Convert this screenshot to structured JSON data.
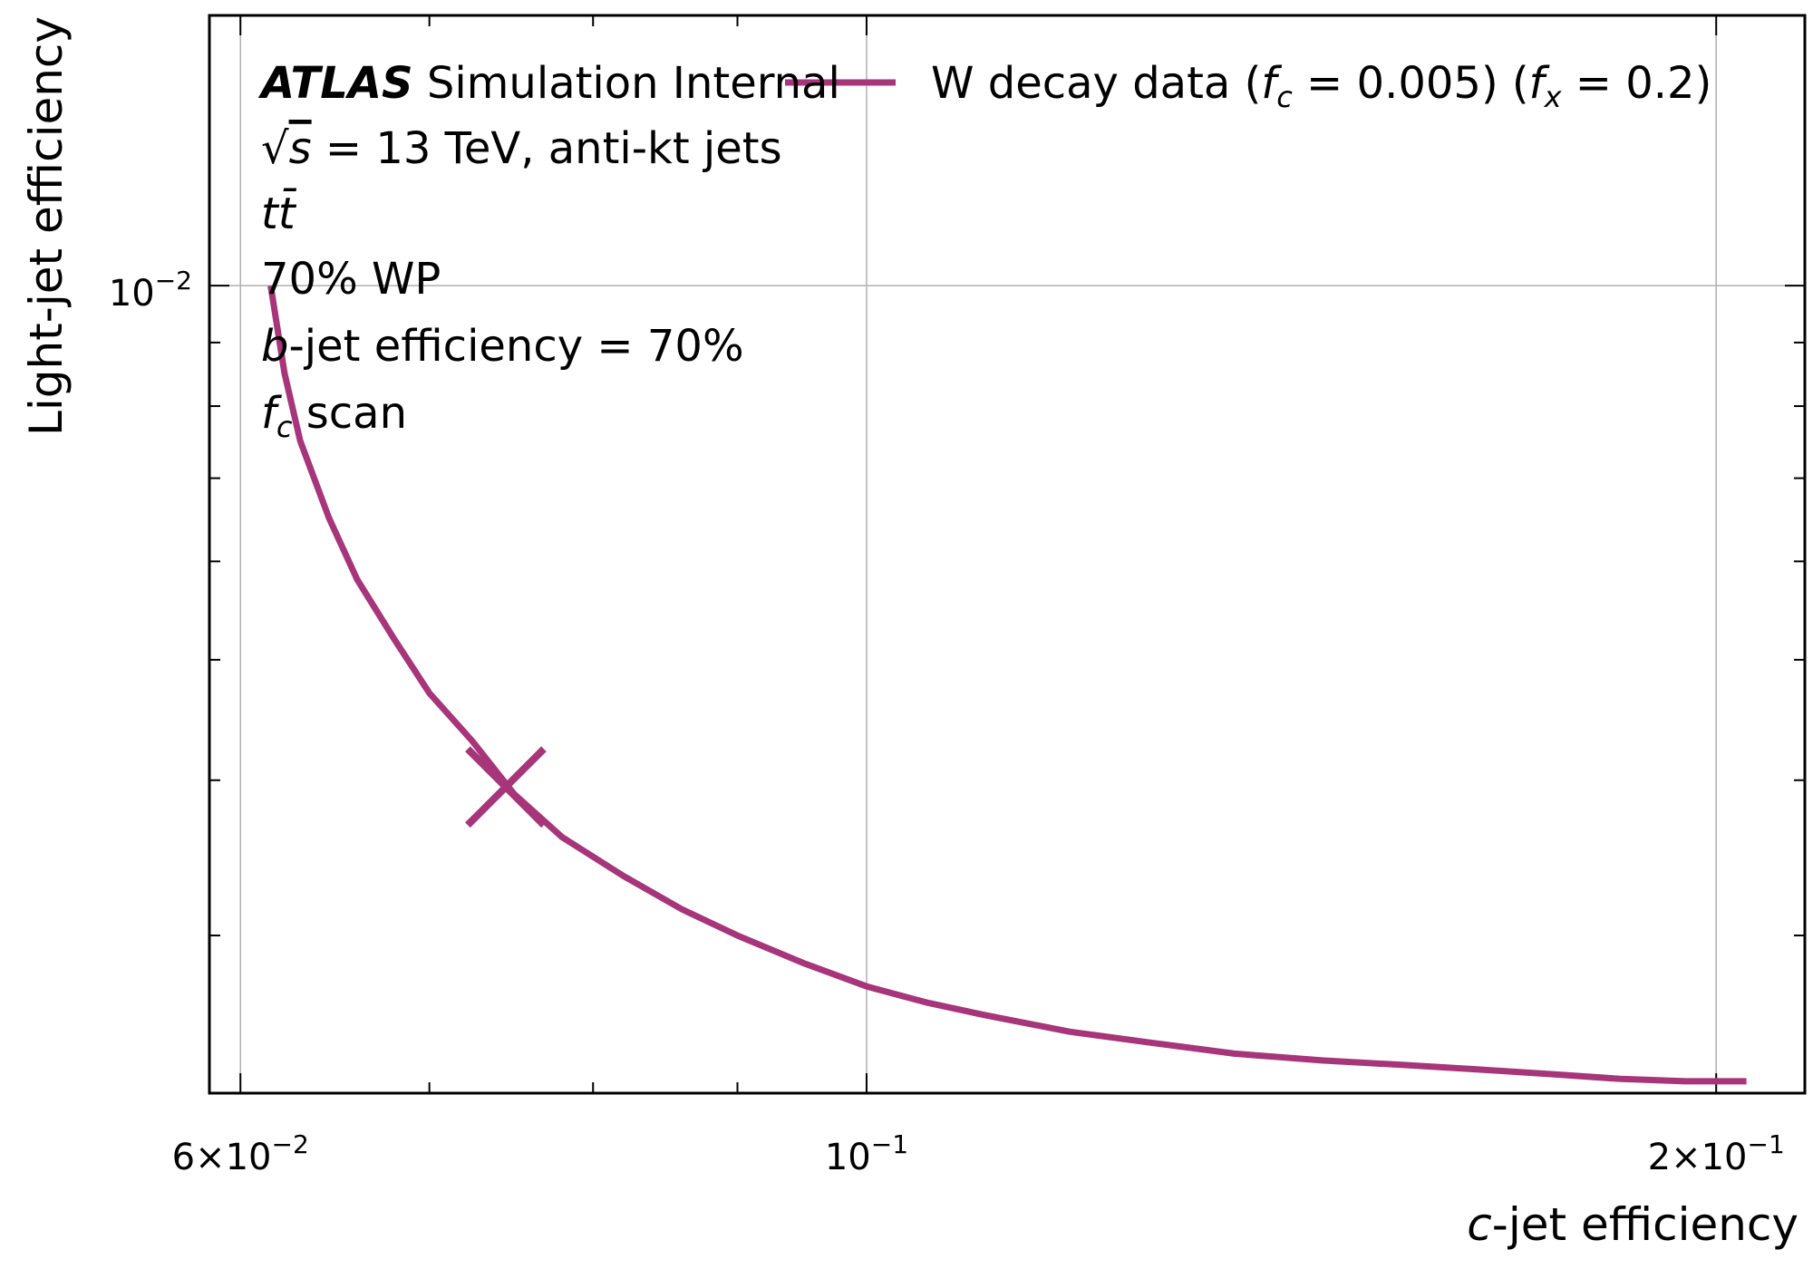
{
  "chart_data": {
    "type": "line",
    "xscale": "log",
    "yscale": "log",
    "xlim": [
      0.0585,
      0.215
    ],
    "ylim": [
      0.00224,
      0.0165
    ],
    "xlabel": {
      "prefix": "c",
      "suffix": "-jet efficiency"
    },
    "ylabel": "Light-jet efficiency",
    "x_major_ticks": [
      {
        "value": 0.06,
        "mantissa": "6",
        "times": "×",
        "base": "10",
        "exp": "−2"
      },
      {
        "value": 0.1,
        "mantissa": "",
        "times": "",
        "base": "10",
        "exp": "−1"
      },
      {
        "value": 0.2,
        "mantissa": "2",
        "times": "×",
        "base": "10",
        "exp": "−1"
      }
    ],
    "x_minor_ticks": [
      0.07,
      0.08,
      0.09
    ],
    "y_major_ticks": [
      {
        "value": 0.01,
        "base": "10",
        "exp": "−2"
      }
    ],
    "y_minor_ticks": [
      0.003,
      0.004,
      0.005,
      0.006,
      0.007,
      0.008,
      0.009
    ],
    "grid": true,
    "legend_placement": "top-right",
    "color": "#a6357a",
    "series": [
      {
        "name": "W decay data (f_c = 0.005) (f_x = 0.2)",
        "x": [
          0.0615,
          0.0622,
          0.063,
          0.0645,
          0.066,
          0.068,
          0.07,
          0.0725,
          0.075,
          0.078,
          0.082,
          0.086,
          0.09,
          0.095,
          0.1,
          0.105,
          0.11,
          0.118,
          0.126,
          0.135,
          0.145,
          0.155,
          0.165,
          0.175,
          0.185,
          0.195,
          0.205
        ],
        "y": [
          0.01,
          0.0085,
          0.0075,
          0.0065,
          0.0058,
          0.0052,
          0.0047,
          0.0043,
          0.0039,
          0.0036,
          0.00335,
          0.00315,
          0.003,
          0.00285,
          0.00273,
          0.00265,
          0.00259,
          0.00251,
          0.00246,
          0.00241,
          0.00238,
          0.00236,
          0.00234,
          0.00232,
          0.0023,
          0.00229,
          0.00229
        ]
      }
    ],
    "marker": {
      "shape": "cross",
      "x": 0.0745,
      "y": 0.00395
    },
    "legend": {
      "prefix": "W decay data (",
      "fc_sym": "f",
      "fc_sub": "c",
      "fc_eq": " = 0.005) (",
      "fx_sym": "f",
      "fx_sub": "x",
      "fx_eq": " = 0.2)"
    },
    "annotations": {
      "atlas": "ATLAS",
      "atlas_rest": " Simulation Internal",
      "energy_sqrt": "√",
      "energy_s": "s",
      "energy_rest": " = 13 TeV, anti-kt jets",
      "process": "tt̄",
      "wp": "70% WP",
      "beff_b": "b",
      "beff_rest": "-jet efficiency = 70%",
      "scan_f": "f",
      "scan_sub": "c",
      "scan_rest": " scan"
    }
  }
}
